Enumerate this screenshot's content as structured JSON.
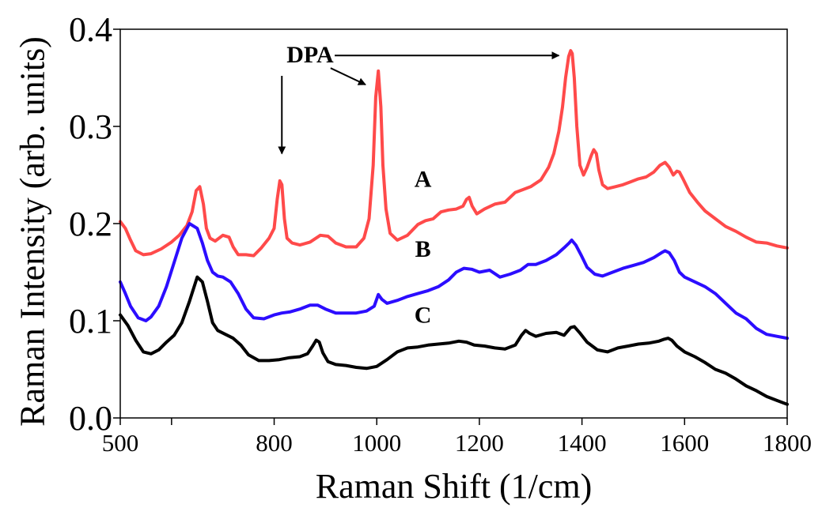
{
  "chart_data": {
    "type": "line",
    "xlabel": "Raman Shift (1/cm)",
    "ylabel": "Raman Intensity (arb. units)",
    "xlim": [
      500,
      1800
    ],
    "ylim": [
      0.0,
      0.4
    ],
    "xticks": [
      500,
      600,
      800,
      1000,
      1200,
      1400,
      1600,
      1800
    ],
    "xtick_labels": [
      "500",
      "",
      "800",
      "1000",
      "1200",
      "1400",
      "1600",
      "1800"
    ],
    "yticks": [
      0.0,
      0.1,
      0.2,
      0.3,
      0.4
    ],
    "ytick_labels": [
      "0.0",
      "0.1",
      "0.2",
      "0.3",
      "0.4"
    ],
    "grid": false,
    "series": [
      {
        "name": "A",
        "color": "#ff4a4a",
        "x": [
          500,
          510,
          520,
          530,
          545,
          560,
          580,
          600,
          615,
          630,
          640,
          648,
          655,
          662,
          668,
          675,
          685,
          700,
          712,
          720,
          730,
          745,
          760,
          775,
          790,
          800,
          806,
          811,
          815,
          820,
          825,
          835,
          850,
          870,
          890,
          905,
          920,
          940,
          960,
          975,
          985,
          993,
          998,
          1003,
          1008,
          1012,
          1018,
          1026,
          1040,
          1060,
          1080,
          1095,
          1110,
          1125,
          1140,
          1155,
          1168,
          1175,
          1180,
          1186,
          1195,
          1210,
          1230,
          1250,
          1270,
          1285,
          1300,
          1320,
          1335,
          1345,
          1355,
          1362,
          1368,
          1374,
          1378,
          1381,
          1385,
          1390,
          1396,
          1403,
          1410,
          1418,
          1423,
          1428,
          1433,
          1440,
          1450,
          1465,
          1480,
          1495,
          1510,
          1525,
          1540,
          1552,
          1562,
          1570,
          1578,
          1585,
          1590,
          1598,
          1610,
          1625,
          1640,
          1660,
          1680,
          1700,
          1720,
          1740,
          1760,
          1780,
          1800
        ],
        "values": [
          0.202,
          0.195,
          0.183,
          0.172,
          0.168,
          0.169,
          0.174,
          0.181,
          0.188,
          0.198,
          0.212,
          0.234,
          0.238,
          0.22,
          0.195,
          0.185,
          0.182,
          0.188,
          0.186,
          0.176,
          0.168,
          0.168,
          0.167,
          0.175,
          0.185,
          0.195,
          0.225,
          0.244,
          0.24,
          0.205,
          0.185,
          0.18,
          0.178,
          0.181,
          0.188,
          0.187,
          0.18,
          0.176,
          0.176,
          0.185,
          0.205,
          0.26,
          0.33,
          0.357,
          0.32,
          0.26,
          0.215,
          0.19,
          0.183,
          0.188,
          0.199,
          0.203,
          0.205,
          0.212,
          0.214,
          0.215,
          0.218,
          0.225,
          0.227,
          0.218,
          0.21,
          0.215,
          0.22,
          0.222,
          0.232,
          0.235,
          0.238,
          0.245,
          0.258,
          0.272,
          0.295,
          0.32,
          0.35,
          0.372,
          0.378,
          0.375,
          0.35,
          0.3,
          0.26,
          0.25,
          0.258,
          0.27,
          0.276,
          0.272,
          0.255,
          0.24,
          0.236,
          0.238,
          0.24,
          0.243,
          0.246,
          0.248,
          0.253,
          0.26,
          0.263,
          0.258,
          0.25,
          0.254,
          0.253,
          0.245,
          0.232,
          0.222,
          0.213,
          0.205,
          0.197,
          0.192,
          0.186,
          0.181,
          0.18,
          0.177,
          0.175
        ]
      },
      {
        "name": "B",
        "color": "#2c0dff",
        "x": [
          500,
          510,
          520,
          535,
          550,
          560,
          575,
          590,
          605,
          620,
          635,
          650,
          660,
          670,
          680,
          690,
          700,
          715,
          730,
          745,
          760,
          780,
          800,
          815,
          830,
          850,
          870,
          885,
          900,
          920,
          940,
          960,
          980,
          995,
          1003,
          1010,
          1020,
          1040,
          1060,
          1080,
          1100,
          1120,
          1140,
          1155,
          1170,
          1185,
          1200,
          1220,
          1240,
          1260,
          1280,
          1295,
          1310,
          1330,
          1350,
          1365,
          1375,
          1380,
          1388,
          1398,
          1410,
          1425,
          1440,
          1460,
          1480,
          1500,
          1520,
          1540,
          1555,
          1562,
          1570,
          1580,
          1590,
          1600,
          1620,
          1640,
          1660,
          1680,
          1700,
          1720,
          1740,
          1760,
          1780,
          1800
        ],
        "values": [
          0.14,
          0.128,
          0.115,
          0.103,
          0.1,
          0.104,
          0.115,
          0.135,
          0.16,
          0.185,
          0.2,
          0.195,
          0.18,
          0.162,
          0.15,
          0.146,
          0.145,
          0.14,
          0.128,
          0.112,
          0.103,
          0.102,
          0.106,
          0.108,
          0.109,
          0.112,
          0.116,
          0.116,
          0.112,
          0.108,
          0.108,
          0.108,
          0.11,
          0.115,
          0.127,
          0.122,
          0.118,
          0.121,
          0.125,
          0.128,
          0.131,
          0.135,
          0.142,
          0.15,
          0.154,
          0.153,
          0.15,
          0.152,
          0.145,
          0.148,
          0.152,
          0.158,
          0.158,
          0.162,
          0.168,
          0.175,
          0.18,
          0.183,
          0.178,
          0.168,
          0.155,
          0.148,
          0.146,
          0.15,
          0.154,
          0.157,
          0.16,
          0.165,
          0.17,
          0.172,
          0.17,
          0.162,
          0.15,
          0.145,
          0.14,
          0.135,
          0.128,
          0.118,
          0.108,
          0.102,
          0.092,
          0.086,
          0.084,
          0.082
        ]
      },
      {
        "name": "C",
        "color": "#000000",
        "x": [
          500,
          515,
          530,
          545,
          560,
          575,
          590,
          605,
          620,
          635,
          650,
          660,
          670,
          680,
          690,
          705,
          720,
          735,
          750,
          770,
          790,
          810,
          830,
          850,
          865,
          875,
          882,
          888,
          895,
          905,
          920,
          940,
          960,
          980,
          1000,
          1020,
          1040,
          1060,
          1080,
          1100,
          1120,
          1140,
          1160,
          1175,
          1190,
          1210,
          1230,
          1250,
          1270,
          1282,
          1290,
          1298,
          1310,
          1330,
          1350,
          1365,
          1378,
          1385,
          1395,
          1410,
          1430,
          1450,
          1470,
          1490,
          1510,
          1530,
          1550,
          1560,
          1568,
          1575,
          1585,
          1600,
          1620,
          1640,
          1660,
          1680,
          1700,
          1720,
          1740,
          1760,
          1780,
          1800
        ],
        "values": [
          0.106,
          0.095,
          0.08,
          0.068,
          0.066,
          0.07,
          0.078,
          0.085,
          0.098,
          0.12,
          0.145,
          0.14,
          0.12,
          0.098,
          0.09,
          0.086,
          0.082,
          0.075,
          0.065,
          0.059,
          0.059,
          0.06,
          0.062,
          0.063,
          0.066,
          0.074,
          0.08,
          0.078,
          0.067,
          0.058,
          0.055,
          0.054,
          0.052,
          0.051,
          0.053,
          0.06,
          0.068,
          0.072,
          0.073,
          0.075,
          0.076,
          0.077,
          0.079,
          0.078,
          0.075,
          0.074,
          0.072,
          0.071,
          0.075,
          0.085,
          0.09,
          0.087,
          0.084,
          0.087,
          0.088,
          0.085,
          0.093,
          0.094,
          0.088,
          0.078,
          0.07,
          0.068,
          0.072,
          0.074,
          0.076,
          0.077,
          0.079,
          0.081,
          0.082,
          0.08,
          0.074,
          0.068,
          0.063,
          0.057,
          0.05,
          0.046,
          0.04,
          0.033,
          0.028,
          0.022,
          0.018,
          0.014
        ]
      }
    ],
    "series_labels": [
      {
        "text": "A",
        "x": 1090,
        "y": 0.238
      },
      {
        "text": "B",
        "x": 1090,
        "y": 0.166
      },
      {
        "text": "C",
        "x": 1090,
        "y": 0.098
      }
    ],
    "annotations": [
      {
        "text": "DPA",
        "x": 870,
        "y": 0.375,
        "arrows": [
          {
            "from": [
              815,
              0.352
            ],
            "to": [
              815,
              0.272
            ]
          },
          {
            "from": [
              910,
              0.36
            ],
            "to": [
              978,
              0.343
            ]
          },
          {
            "from": [
              918,
              0.373
            ],
            "to": [
              1355,
              0.373
            ]
          }
        ]
      }
    ]
  }
}
